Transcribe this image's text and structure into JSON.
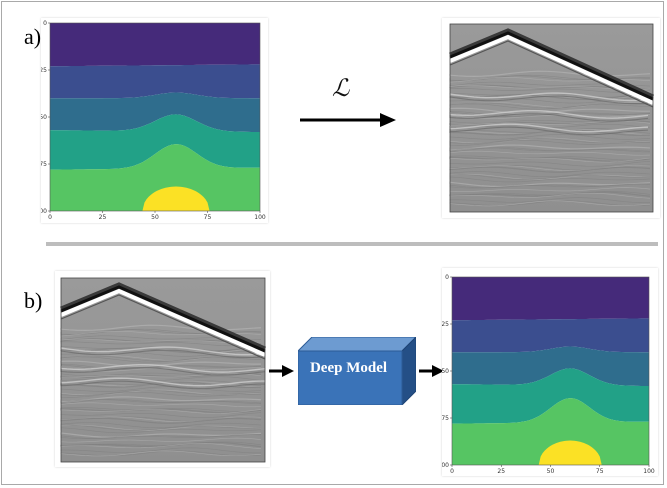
{
  "panel_a": {
    "label": "a)",
    "operator": "ℒ",
    "velocity_model": {
      "y_ticks": [
        "0",
        "25",
        "50",
        "75",
        "100"
      ],
      "x_ticks": [
        "0",
        "25",
        "50",
        "75",
        "100"
      ]
    }
  },
  "panel_b": {
    "label": "b)",
    "network_label": "Deep Model",
    "velocity_model": {
      "y_ticks": [
        "0",
        "25",
        "50",
        "75",
        "100"
      ],
      "x_ticks": [
        "0",
        "25",
        "50",
        "75",
        "100"
      ]
    }
  },
  "colors": {
    "layer_1": "#452a7a",
    "layer_2": "#3b4e8f",
    "layer_3": "#2f6d8d",
    "layer_4": "#22a187",
    "layer_5": "#56c563",
    "anomaly": "#fbe125",
    "network_box": "#3a73b8"
  }
}
